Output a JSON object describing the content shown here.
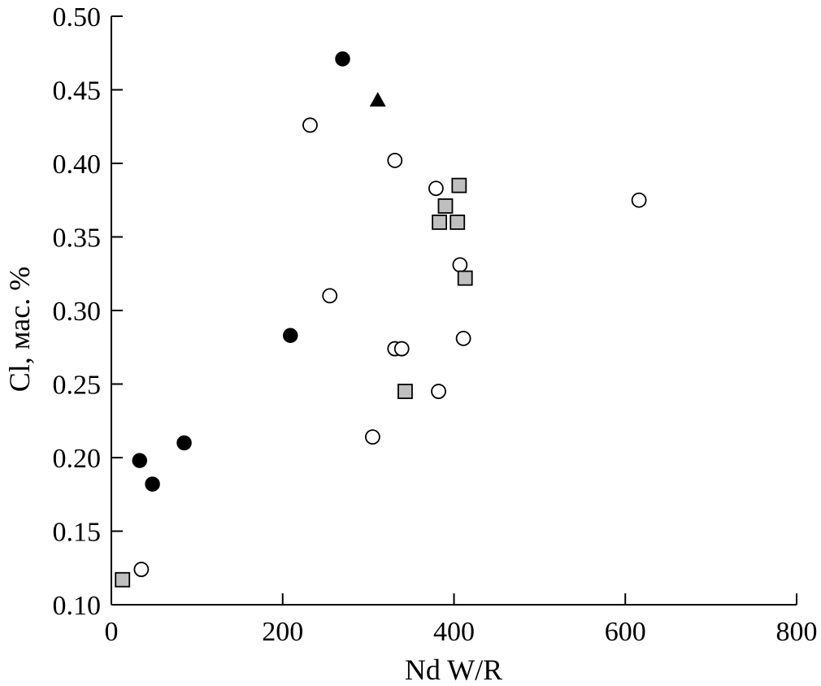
{
  "chart_data": {
    "type": "scatter",
    "title": "",
    "xlabel": "Nd W/R",
    "ylabel": "Cl, мас. %",
    "xlim": [
      0,
      800
    ],
    "ylim": [
      0.1,
      0.5
    ],
    "x_ticks": [
      0,
      200,
      400,
      600,
      800
    ],
    "y_ticks": [
      0.1,
      0.15,
      0.2,
      0.25,
      0.3,
      0.35,
      0.4,
      0.45,
      0.5
    ],
    "x_tick_labels": [
      "0",
      "200",
      "400",
      "600",
      "800"
    ],
    "y_tick_labels": [
      "0.10",
      "0.15",
      "0.20",
      "0.25",
      "0.30",
      "0.35",
      "0.40",
      "0.45",
      "0.50"
    ],
    "grid": false,
    "legend": "none",
    "series": [
      {
        "marker": "filled-circle",
        "color": "#000000",
        "points": [
          {
            "x": 270,
            "y": 0.471
          },
          {
            "x": 209,
            "y": 0.283
          },
          {
            "x": 85,
            "y": 0.21
          },
          {
            "x": 33,
            "y": 0.198
          },
          {
            "x": 48,
            "y": 0.182
          }
        ]
      },
      {
        "marker": "open-circle",
        "color": "#000000",
        "points": [
          {
            "x": 232,
            "y": 0.426
          },
          {
            "x": 331,
            "y": 0.402
          },
          {
            "x": 379,
            "y": 0.383
          },
          {
            "x": 616,
            "y": 0.375
          },
          {
            "x": 407,
            "y": 0.331
          },
          {
            "x": 255,
            "y": 0.31
          },
          {
            "x": 411,
            "y": 0.281
          },
          {
            "x": 331,
            "y": 0.274
          },
          {
            "x": 339,
            "y": 0.274
          },
          {
            "x": 382,
            "y": 0.245
          },
          {
            "x": 305,
            "y": 0.214
          },
          {
            "x": 35,
            "y": 0.124
          }
        ]
      },
      {
        "marker": "gray-square",
        "color": "#bfbfbf",
        "points": [
          {
            "x": 406,
            "y": 0.385
          },
          {
            "x": 390,
            "y": 0.371
          },
          {
            "x": 383,
            "y": 0.36
          },
          {
            "x": 404,
            "y": 0.36
          },
          {
            "x": 413,
            "y": 0.322
          },
          {
            "x": 343,
            "y": 0.245
          },
          {
            "x": 13,
            "y": 0.117
          }
        ]
      },
      {
        "marker": "filled-triangle",
        "color": "#000000",
        "points": [
          {
            "x": 311,
            "y": 0.443
          }
        ]
      }
    ]
  }
}
